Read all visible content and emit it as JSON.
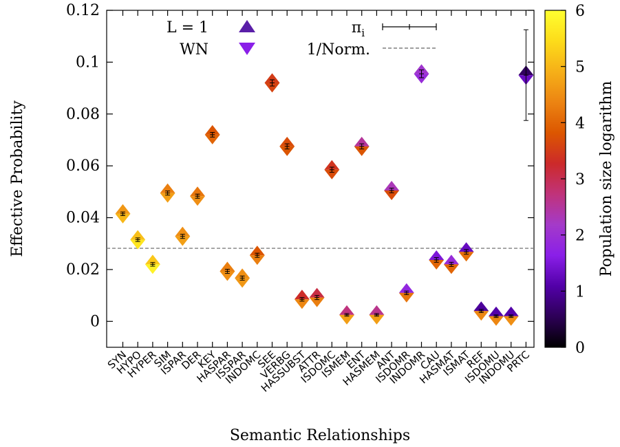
{
  "chart_data": {
    "type": "scatter",
    "xlabel": "Semantic Relationships",
    "ylabel": "Effective Probability",
    "ylim": [
      -0.01,
      0.12
    ],
    "yticks": [
      "0",
      "0.02",
      "0.04",
      "0.06",
      "0.08",
      "0.1",
      "0.12"
    ],
    "categories": [
      "SYN",
      "HYPO",
      "HYPER",
      "SIM",
      "ISPAR",
      "DER",
      "KEY",
      "HASPAR",
      "ISSPAR",
      "INDOMC",
      "SEE",
      "VERBG",
      "HASSUBST",
      "ATTR",
      "ISDOMC",
      "ISMEM",
      "ENT",
      "HASMEM",
      "ANT",
      "ISDOMR",
      "INDOMR",
      "CAU",
      "HASMAT",
      "ISMAT",
      "REF",
      "ISDOMU",
      "INDOMU",
      "PRTC"
    ],
    "series": [
      {
        "name": "L = 1",
        "marker": "up-triangle",
        "values": [
          0.0415,
          0.0315,
          0.022,
          0.0495,
          0.0328,
          0.0483,
          0.072,
          0.0193,
          0.0167,
          0.0255,
          0.092,
          0.0675,
          0.0085,
          0.0092,
          0.0585,
          0.0025,
          0.0675,
          0.0025,
          0.0505,
          0.011,
          0.0955,
          0.0237,
          0.022,
          0.0268,
          0.004,
          0.002,
          0.002,
          0.095
        ],
        "color_values": [
          4.6,
          5.1,
          5.2,
          4.3,
          4.5,
          4.2,
          3.8,
          4.3,
          4.5,
          3.8,
          3.5,
          3.7,
          3.3,
          3.1,
          3.4,
          2.7,
          2.5,
          2.6,
          2.3,
          1.8,
          2.1,
          1.5,
          1.9,
          1.3,
          1.0,
          1.1,
          1.1,
          0.6
        ]
      },
      {
        "name": "WN",
        "marker": "down-triangle",
        "values": [
          0.0415,
          0.0315,
          0.022,
          0.0495,
          0.0328,
          0.0483,
          0.072,
          0.0193,
          0.0167,
          0.0255,
          0.092,
          0.0675,
          0.0085,
          0.0092,
          0.0585,
          0.0025,
          0.0675,
          0.0025,
          0.0505,
          0.011,
          0.0955,
          0.0237,
          0.022,
          0.0268,
          0.004,
          0.002,
          0.002,
          0.095
        ],
        "color_values": [
          5.0,
          5.6,
          5.8,
          4.7,
          4.7,
          4.5,
          4.0,
          4.5,
          4.6,
          4.3,
          3.6,
          3.8,
          4.4,
          4.3,
          3.7,
          4.7,
          3.8,
          4.7,
          3.7,
          4.2,
          1.9,
          4.0,
          4.0,
          4.1,
          4.4,
          4.4,
          4.5,
          1.3
        ]
      }
    ],
    "pi_i_errors": [
      0.0007,
      0.0007,
      0.0007,
      0.0008,
      0.0008,
      0.0008,
      0.0009,
      0.0008,
      0.0008,
      0.0008,
      0.0012,
      0.001,
      0.0007,
      0.0008,
      0.001,
      0.0005,
      0.001,
      0.0005,
      0.0009,
      0.0007,
      0.0015,
      0.0009,
      0.0008,
      0.0009,
      0.0006,
      0.0005,
      0.0005,
      0.0175
    ],
    "reference_line": {
      "name": "1/Norm.",
      "value": 0.0282,
      "style": "dashed",
      "color": "#7f7f7f"
    },
    "legend": {
      "placement": "top",
      "entries": [
        "L = 1",
        "WN",
        "π",
        "1/Norm."
      ],
      "pi_label_main": "π",
      "pi_label_sub": "i"
    },
    "colorbar": {
      "label": "Population size logarithm",
      "range": [
        0,
        6
      ],
      "ticks": [
        "0",
        "1",
        "2",
        "3",
        "4",
        "5",
        "6"
      ],
      "palette": [
        "#000000",
        "#2d0057",
        "#5200a8",
        "#8a1fe8",
        "#a43ac9",
        "#c0337a",
        "#cc2a2a",
        "#dc5600",
        "#ec8412",
        "#f6b018",
        "#fddc1a",
        "#ffff30"
      ]
    },
    "grid": false
  }
}
